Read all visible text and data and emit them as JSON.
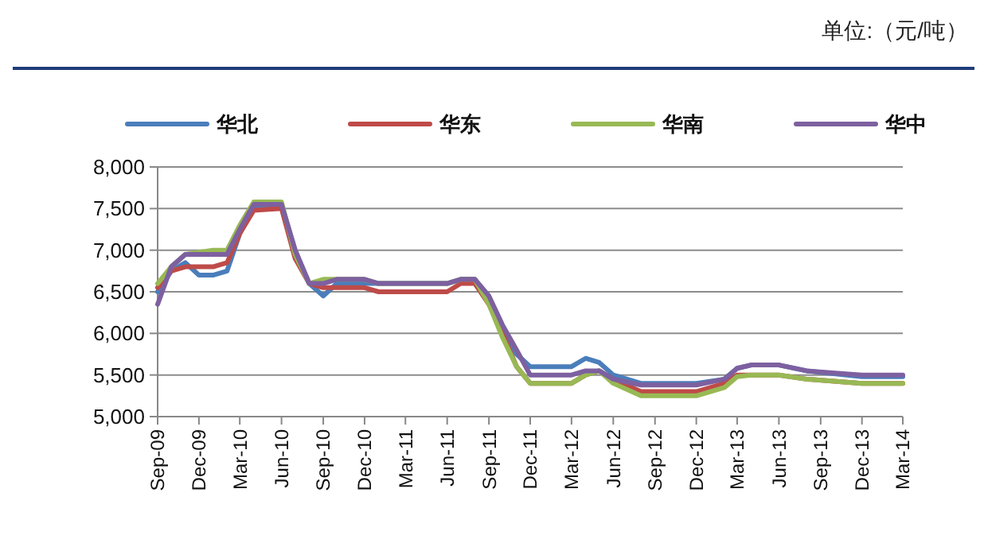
{
  "chart_data": {
    "type": "line",
    "annotations": [
      "单位:（元/吨）"
    ],
    "xlim": [
      "2009-09",
      "2014-03"
    ],
    "xticks": [
      {
        "value": "2009-09",
        "label": "Sep-09"
      },
      {
        "value": "2009-12",
        "label": "Dec-09"
      },
      {
        "value": "2010-03",
        "label": "Mar-10"
      },
      {
        "value": "2010-06",
        "label": "Jun-10"
      },
      {
        "value": "2010-09",
        "label": "Sep-10"
      },
      {
        "value": "2010-12",
        "label": "Dec-10"
      },
      {
        "value": "2011-03",
        "label": "Mar-11"
      },
      {
        "value": "2011-06",
        "label": "Jun-11"
      },
      {
        "value": "2011-09",
        "label": "Sep-11"
      },
      {
        "value": "2011-12",
        "label": "Dec-11"
      },
      {
        "value": "2012-03",
        "label": "Mar-12"
      },
      {
        "value": "2012-06",
        "label": "Jun-12"
      },
      {
        "value": "2012-09",
        "label": "Sep-12"
      },
      {
        "value": "2012-12",
        "label": "Dec-12"
      },
      {
        "value": "2013-03",
        "label": "Mar-13"
      },
      {
        "value": "2013-06",
        "label": "Jun-13"
      },
      {
        "value": "2013-09",
        "label": "Sep-13"
      },
      {
        "value": "2013-12",
        "label": "Dec-13"
      },
      {
        "value": "2014-03",
        "label": "Mar-14"
      }
    ],
    "ylim": [
      5000,
      8000
    ],
    "yticks": [
      {
        "value": 5000,
        "label": "5,000"
      },
      {
        "value": 5500,
        "label": "5,500"
      },
      {
        "value": 6000,
        "label": "6,000"
      },
      {
        "value": 6500,
        "label": "6,500"
      },
      {
        "value": 7000,
        "label": "7,000"
      },
      {
        "value": 7500,
        "label": "7,500"
      },
      {
        "value": 8000,
        "label": "8,000"
      }
    ],
    "grid": "y",
    "legend": "top",
    "marker": "none",
    "line_style": "solid",
    "series": [
      {
        "name": "华北",
        "color": "#4a7ebb",
        "x": [
          "2009-09",
          "2009-10",
          "2009-11",
          "2009-12",
          "2010-01",
          "2010-02",
          "2010-03",
          "2010-04",
          "2010-06",
          "2010-07",
          "2010-08",
          "2010-09",
          "2010-10",
          "2010-12",
          "2011-06",
          "2011-07",
          "2011-08",
          "2011-09",
          "2011-10",
          "2011-11",
          "2011-12",
          "2012-03",
          "2012-04",
          "2012-05",
          "2012-06",
          "2012-08",
          "2012-12",
          "2013-02",
          "2013-03",
          "2013-04",
          "2013-06",
          "2013-08",
          "2013-12",
          "2014-03"
        ],
        "values": [
          6500,
          6750,
          6850,
          6700,
          6700,
          6750,
          7200,
          7520,
          7550,
          7000,
          6600,
          6450,
          6600,
          6600,
          6600,
          6650,
          6650,
          6400,
          6050,
          5750,
          5600,
          5600,
          5700,
          5650,
          5500,
          5400,
          5400,
          5450,
          5580,
          5620,
          5620,
          5550,
          5480,
          5480
        ]
      },
      {
        "name": "华东",
        "color": "#be4b48",
        "x": [
          "2009-09",
          "2009-10",
          "2009-11",
          "2010-01",
          "2010-02",
          "2010-03",
          "2010-04",
          "2010-06",
          "2010-07",
          "2010-08",
          "2010-09",
          "2010-12",
          "2011-01",
          "2011-06",
          "2011-07",
          "2011-08",
          "2011-09",
          "2011-10",
          "2011-11",
          "2011-12",
          "2012-03",
          "2012-04",
          "2012-05",
          "2012-06",
          "2012-08",
          "2012-12",
          "2013-02",
          "2013-03",
          "2013-06",
          "2013-08",
          "2013-12",
          "2014-03"
        ],
        "values": [
          6550,
          6750,
          6800,
          6800,
          6850,
          7200,
          7480,
          7500,
          6900,
          6600,
          6550,
          6550,
          6500,
          6500,
          6600,
          6600,
          6350,
          6000,
          5600,
          5400,
          5400,
          5500,
          5550,
          5450,
          5300,
          5300,
          5400,
          5500,
          5500,
          5450,
          5400,
          5400
        ]
      },
      {
        "name": "华南",
        "color": "#98b954",
        "x": [
          "2009-09",
          "2009-10",
          "2009-11",
          "2010-01",
          "2010-02",
          "2010-03",
          "2010-04",
          "2010-06",
          "2010-07",
          "2010-08",
          "2010-09",
          "2010-12",
          "2011-01",
          "2011-06",
          "2011-07",
          "2011-08",
          "2011-09",
          "2011-10",
          "2011-11",
          "2011-12",
          "2012-03",
          "2012-04",
          "2012-05",
          "2012-06",
          "2012-08",
          "2012-12",
          "2013-02",
          "2013-03",
          "2013-04",
          "2013-06",
          "2013-08",
          "2013-12",
          "2014-03"
        ],
        "values": [
          6600,
          6800,
          6950,
          7000,
          7000,
          7300,
          7580,
          7580,
          6950,
          6600,
          6650,
          6650,
          6600,
          6600,
          6650,
          6650,
          6350,
          5950,
          5600,
          5400,
          5400,
          5500,
          5550,
          5400,
          5250,
          5250,
          5350,
          5480,
          5500,
          5500,
          5450,
          5400,
          5400
        ]
      },
      {
        "name": "华中",
        "color": "#7d60a0",
        "x": [
          "2009-09",
          "2009-10",
          "2009-11",
          "2010-02",
          "2010-03",
          "2010-04",
          "2010-06",
          "2010-07",
          "2010-08",
          "2010-09",
          "2010-10",
          "2010-12",
          "2011-01",
          "2011-06",
          "2011-07",
          "2011-08",
          "2011-09",
          "2011-10",
          "2011-11",
          "2011-12",
          "2012-03",
          "2012-04",
          "2012-05",
          "2012-06",
          "2012-08",
          "2012-12",
          "2013-02",
          "2013-03",
          "2013-04",
          "2013-06",
          "2013-08",
          "2013-12",
          "2014-03"
        ],
        "values": [
          6350,
          6800,
          6950,
          6950,
          7250,
          7550,
          7550,
          7000,
          6600,
          6600,
          6650,
          6650,
          6600,
          6600,
          6650,
          6650,
          6450,
          6100,
          5800,
          5500,
          5500,
          5550,
          5550,
          5450,
          5380,
          5380,
          5450,
          5580,
          5620,
          5620,
          5550,
          5500,
          5500
        ]
      }
    ]
  }
}
